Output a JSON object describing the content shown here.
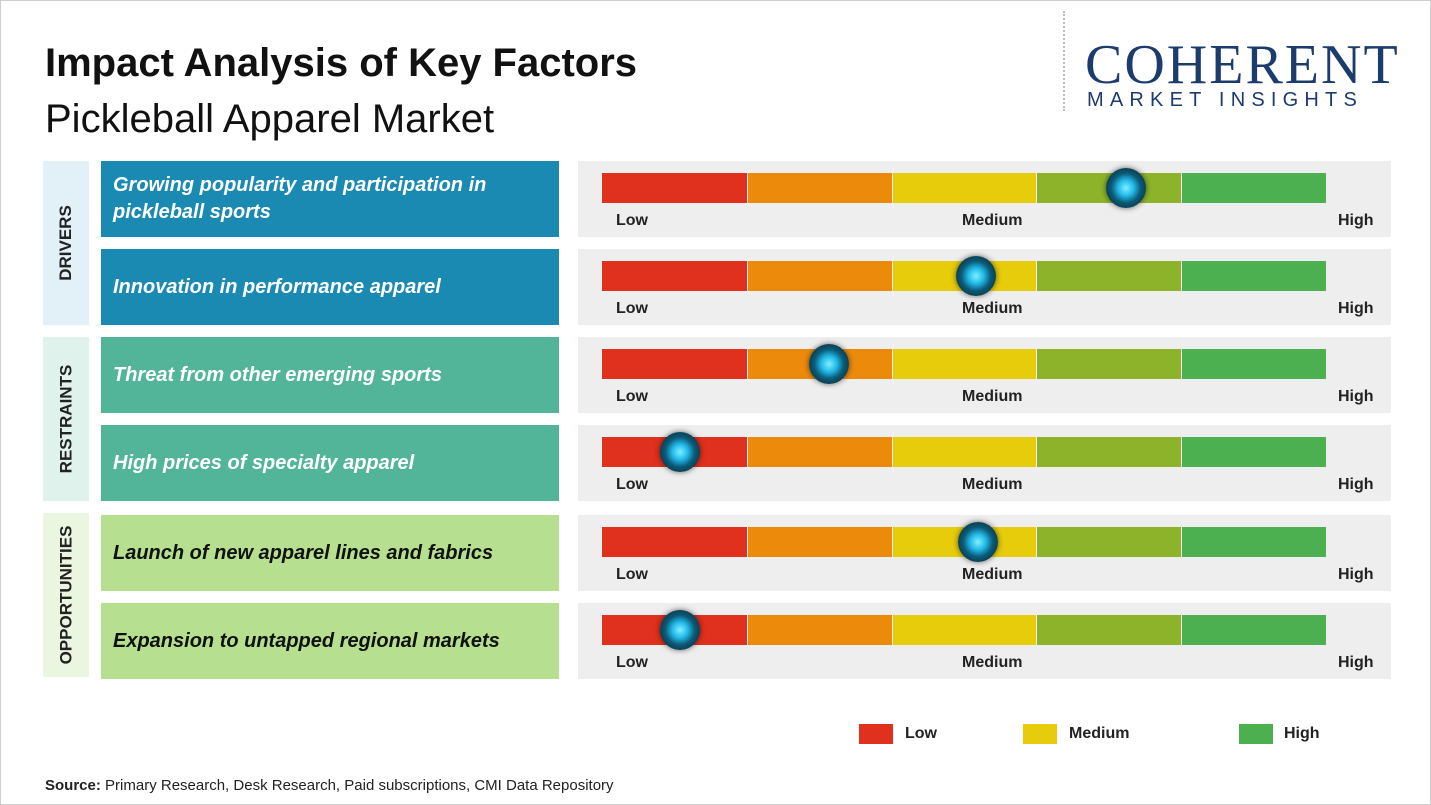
{
  "header": {
    "title": "Impact Analysis of Key Factors",
    "subtitle": "Pickleball Apparel Market"
  },
  "logo": {
    "name": "COHERENT",
    "tagline": "MARKET INSIGHTS"
  },
  "gauge": {
    "segments": [
      "#e0301e",
      "#ec8a0c",
      "#e6cc0a",
      "#8db32a",
      "#4caf50"
    ],
    "labels": [
      "Low",
      "Medium",
      "High"
    ]
  },
  "groups": [
    {
      "label": "DRIVERS",
      "color": "#1a8ab3",
      "side_color": "#e2f0f7",
      "text_color": "#ffffff",
      "factors": [
        {
          "text": "Growing popularity and participation in pickleball sports",
          "impact": 3.62
        },
        {
          "text": "Innovation in performance apparel",
          "impact": 2.58
        }
      ]
    },
    {
      "label": "RESTRAINTS",
      "color": "#52b59a",
      "side_color": "#e0f2ec",
      "text_color": "#ffffff",
      "factors": [
        {
          "text": "Threat from other emerging sports",
          "impact": 1.57
        },
        {
          "text": "High prices of specialty apparel",
          "impact": 0.54
        }
      ]
    },
    {
      "label": "OPPORTUNITIES",
      "color": "#b6e090",
      "side_color": "#eaf6e0",
      "text_color": "#111111",
      "factors": [
        {
          "text": "Launch of new apparel lines and fabrics",
          "impact": 2.6
        },
        {
          "text": "Expansion to untapped regional markets",
          "impact": 0.54
        }
      ]
    }
  ],
  "legend": [
    {
      "label": "Low",
      "color": "#e0301e"
    },
    {
      "label": "Medium",
      "color": "#e6cc0a"
    },
    {
      "label": "High",
      "color": "#4caf50"
    }
  ],
  "source": {
    "label": "Source:",
    "text": "Primary Research, Desk Research, Paid subscriptions, CMI Data Repository"
  }
}
